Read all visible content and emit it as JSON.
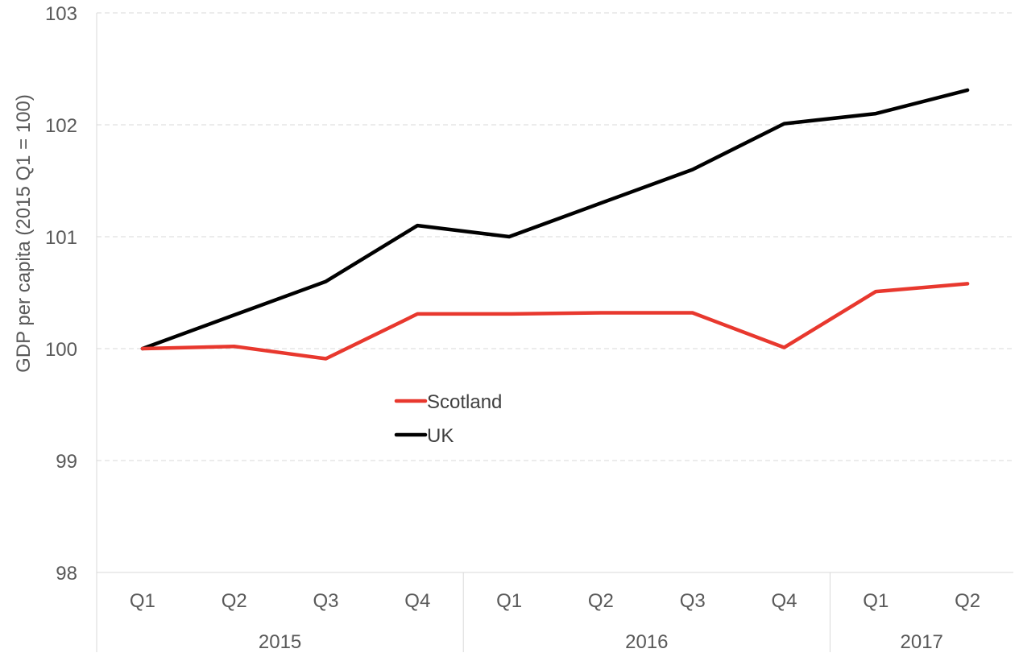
{
  "chart_data": {
    "type": "line",
    "title": "",
    "ylabel": "GDP per capita (2015 Q1 = 100)",
    "xlabel": "",
    "ylim": [
      98,
      103
    ],
    "yticks": [
      "98",
      "99",
      "100",
      "101",
      "102",
      "103"
    ],
    "categories": [
      "Q1",
      "Q2",
      "Q3",
      "Q4",
      "Q1",
      "Q2",
      "Q3",
      "Q4",
      "Q1",
      "Q2"
    ],
    "groups": [
      {
        "label": "2015",
        "count": 4
      },
      {
        "label": "2016",
        "count": 4
      },
      {
        "label": "2017",
        "count": 2
      }
    ],
    "grid": "horizontal dashed",
    "legend_position": "center",
    "series": [
      {
        "name": "Scotland",
        "color": "#E8382E",
        "values": [
          100.0,
          100.02,
          99.91,
          100.31,
          100.31,
          100.32,
          100.32,
          100.01,
          100.51,
          100.58
        ]
      },
      {
        "name": "UK",
        "color": "#000000",
        "values": [
          100.0,
          100.3,
          100.6,
          101.1,
          101.0,
          101.3,
          101.6,
          102.01,
          102.1,
          102.31
        ]
      }
    ]
  }
}
